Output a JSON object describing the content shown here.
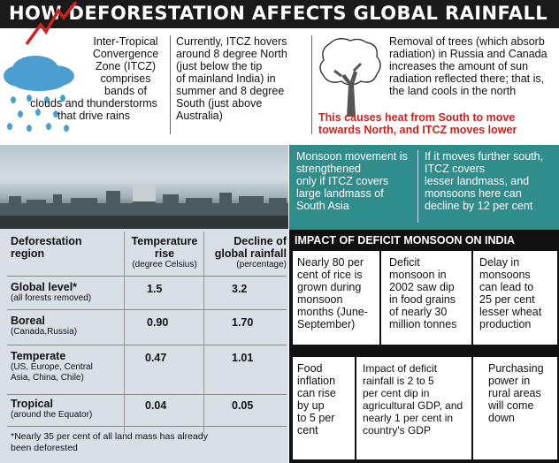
{
  "header": {
    "title": "HOW DEFORESTATION AFFECTS GLOBAL RAINFALL"
  },
  "intro": {
    "itcz_desc": [
      "Inter-Tropical",
      "Convergence",
      "Zone (ITCZ)",
      "comprises",
      "bands of",
      "clouds and thunderstorms",
      "that drive rains"
    ],
    "itcz_position": [
      "Currently, ITCZ hovers",
      "around 8 degree North",
      "(just below the tip",
      "of mainland India) in",
      "summer and 8 degree",
      "South (just above",
      "Australia)"
    ],
    "removal": [
      "Removal of trees (which absorb",
      "radiation) in Russia and Canada",
      "increases the amount of sun",
      "radiation reflected there; that is,",
      "the land cools in the north"
    ],
    "consequence": [
      "This causes heat from South to move",
      "towards North, and ITCZ moves lower"
    ]
  },
  "monsoon": {
    "left": [
      "Monsoon movement is",
      "strengthened",
      "only if ITCZ covers",
      "large landmass of",
      "South Asia"
    ],
    "right": [
      "If it moves further south,",
      "ITCZ covers",
      "lesser landmass, and",
      "monsoons here can",
      "decline by 12 per cent"
    ]
  },
  "table": {
    "headers": {
      "region": [
        "Deforestation",
        "region"
      ],
      "temp": [
        "Temperature",
        "rise"
      ],
      "temp_unit": "(degree Celsius)",
      "rain": [
        "Decline of",
        "global rainfall"
      ],
      "rain_unit": "(percentage)"
    },
    "rows": [
      {
        "region": "Global level*",
        "sub": [
          "(all forests removed)"
        ],
        "temp": "1.5",
        "rain": "3.2"
      },
      {
        "region": "Boreal",
        "sub": [
          "(Canada,Russia)"
        ],
        "temp": "0.90",
        "rain": "1.70"
      },
      {
        "region": "Temperate",
        "sub": [
          "(US, Europe, Central",
          "Asia, China, Chile)"
        ],
        "temp": "0.47",
        "rain": "1.01"
      },
      {
        "region": "Tropical",
        "sub": [
          "(around the Equator)"
        ],
        "temp": "0.04",
        "rain": "0.05"
      }
    ],
    "footnote": [
      "*Nearly 35 per cent of all land mass has already",
      "been deforested"
    ]
  },
  "impact": {
    "title": "IMPACT OF DEFICIT MONSOON ON INDIA",
    "row1": [
      [
        "Nearly 80 per",
        "cent of rice is",
        "grown during",
        "monsoon",
        "months (June-",
        "September)"
      ],
      [
        "Deficit",
        "monsoon in",
        "2002 saw dip",
        "in food grains",
        "of nearly 30",
        "million tonnes"
      ],
      [
        "Delay in",
        "monsoons",
        "can lead to",
        "25 per cent",
        "lesser wheat",
        "production"
      ]
    ],
    "row2": [
      [
        "Food",
        "inflation",
        "can rise",
        "by up",
        "to 5 per",
        "cent"
      ],
      [
        "Impact of deficit",
        "rainfall is 2 to 5",
        "per cent dip in",
        "agricultural GDP, and",
        "nearly 1 per cent in",
        "country's GDP"
      ],
      [
        "Purchasing",
        "power in",
        "rural areas",
        "will come",
        "down"
      ]
    ]
  },
  "colors": {
    "header": "#1a1a1a",
    "teal": "#2f8d8c",
    "red": "#d0201c",
    "table_bg": "#d9dfe6",
    "impact_bg": "#111111"
  },
  "icons": [
    "storm-cloud-icon",
    "lightning-icon",
    "tree-icon"
  ]
}
